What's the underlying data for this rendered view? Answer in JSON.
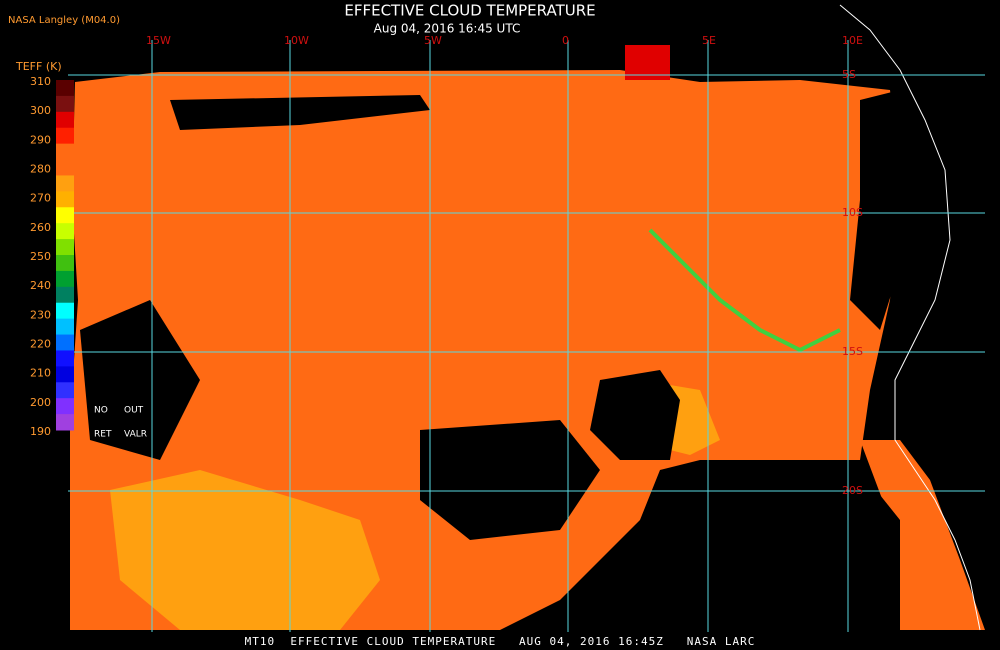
{
  "header": {
    "source": "NASA Langley (M04.0)",
    "title": "EFFECTIVE CLOUD TEMPERATURE",
    "subtitle": "Aug 04, 2016 16:45 UTC"
  },
  "legend": {
    "unit": "TEFF (K)",
    "ticks": [
      310,
      300,
      290,
      280,
      270,
      260,
      250,
      240,
      230,
      220,
      210,
      200,
      190
    ],
    "notes": [
      "NO",
      "OUT",
      "RET",
      "VALR"
    ]
  },
  "grid": {
    "lon_labels": [
      "15W",
      "10W",
      "5W",
      "0",
      "5E",
      "10E"
    ],
    "lat_labels": [
      "5S",
      "10S",
      "15S",
      "20S"
    ]
  },
  "footer": "MT10  EFFECTIVE CLOUD TEMPERATURE   AUG 04, 2016 16:45Z   NASA LARC"
}
